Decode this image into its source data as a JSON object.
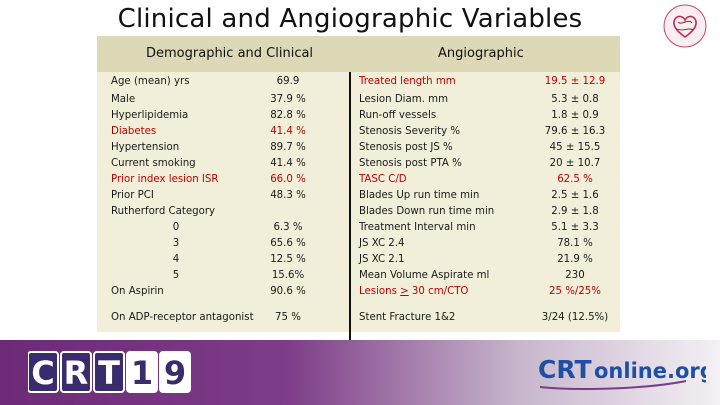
{
  "title": "Clinical and Angiographic Variables",
  "headers": {
    "left": "Demographic and Clinical",
    "right": "Angiographic"
  },
  "left_rows": [
    {
      "label": "Age (mean) yrs",
      "value": "69.9",
      "red": false,
      "sub": false
    },
    {
      "label": "Male",
      "value": "37.9 %",
      "red": false,
      "sub": false
    },
    {
      "label": "Hyperlipidemia",
      "value": "82.8 %",
      "red": false,
      "sub": false
    },
    {
      "label": "Diabetes",
      "value": "41.4 %",
      "red": true,
      "sub": false
    },
    {
      "label": "Hypertension",
      "value": "89.7 %",
      "red": false,
      "sub": false
    },
    {
      "label": "Current smoking",
      "value": "41.4 %",
      "red": false,
      "sub": false
    },
    {
      "label": "Prior index lesion ISR",
      "value": "66.0 %",
      "red": true,
      "sub": false
    },
    {
      "label": "Prior PCI",
      "value": "48.3 %",
      "red": false,
      "sub": false
    },
    {
      "label": "Rutherford Category",
      "value": "",
      "red": false,
      "sub": false
    },
    {
      "label": "0",
      "value": "6.3 %",
      "red": false,
      "sub": true
    },
    {
      "label": "3",
      "value": "65.6 %",
      "red": false,
      "sub": true
    },
    {
      "label": "4",
      "value": "12.5 %",
      "red": false,
      "sub": true
    },
    {
      "label": "5",
      "value": "15.6%",
      "red": false,
      "sub": true
    },
    {
      "label": "On Aspirin",
      "value": "90.6 %",
      "red": false,
      "sub": false
    },
    {
      "label": "On ADP-receptor antagonist",
      "value": "75 %",
      "red": false,
      "sub": false
    }
  ],
  "right_rows": [
    {
      "label": "Treated length mm",
      "value": "19.5 ± 12.9",
      "red": true
    },
    {
      "label": "Lesion Diam. mm",
      "value": "5.3 ± 0.8",
      "red": false
    },
    {
      "label": "Run-off vessels",
      "value": "1.8 ± 0.9",
      "red": false
    },
    {
      "label": "Stenosis Severity %",
      "value": "79.6 ± 16.3",
      "red": false
    },
    {
      "label": "Stenosis post JS %",
      "value": "45 ± 15.5",
      "red": false
    },
    {
      "label": "Stenosis post PTA %",
      "value": "20 ± 10.7",
      "red": false
    },
    {
      "label": "TASC C/D",
      "value": "62.5 %",
      "red": true
    },
    {
      "label": "Blades Up run time min",
      "value": "2.5 ± 1.6",
      "red": false
    },
    {
      "label": "Blades Down run time min",
      "value": "2.9 ± 1.8",
      "red": false
    },
    {
      "label": "Treatment Interval min",
      "value": "5.1 ± 3.3",
      "red": false
    },
    {
      "label": "JS XC 2.4",
      "value": "78.1 %",
      "red": false
    },
    {
      "label": "JS XC 2.1",
      "value": "21.9 %",
      "red": false
    },
    {
      "label": "Mean Volume Aspirate ml",
      "value": "230",
      "red": false
    },
    {
      "label": "Lesions > 30 cm/CTO",
      "value": "25 %/25%",
      "red": true
    },
    {
      "label": "Stent Fracture 1&2",
      "value": "3/24 (12.5%)",
      "red": false
    }
  ],
  "footer": {
    "crt_letters": [
      "C",
      "R",
      "T",
      "1",
      "9"
    ],
    "crt_online": {
      "prefix": "CRT",
      "suffix": "online.org"
    }
  },
  "colors": {
    "footer_purple": "#6d2a77",
    "table_bg": "#f1efd9",
    "header_band": "#ddd8b6",
    "red_text": "#c00000",
    "crt_online_blue": "#1f4fa3"
  }
}
